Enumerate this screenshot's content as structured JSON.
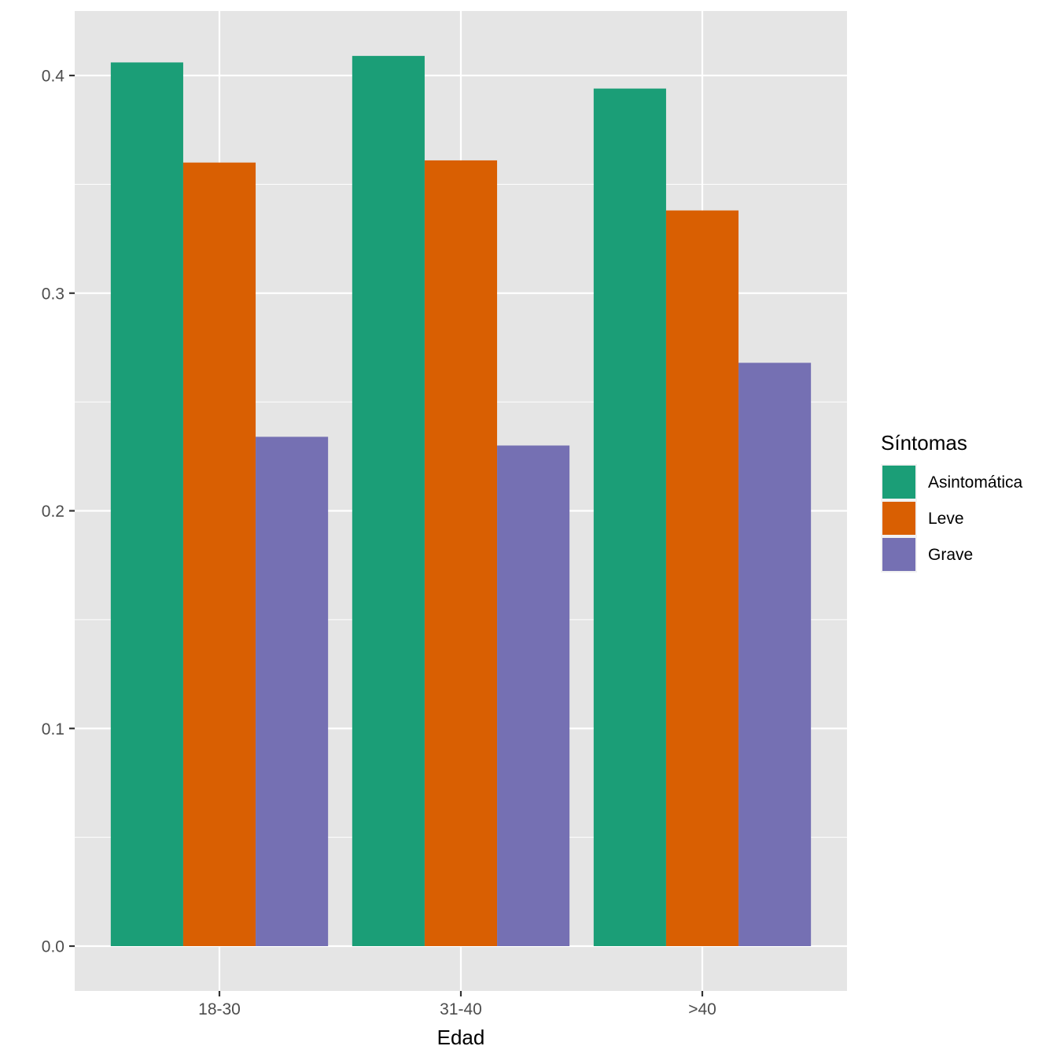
{
  "chart_data": {
    "type": "bar",
    "title": "",
    "xlabel": "Edad",
    "ylabel": "",
    "categories": [
      "18-30",
      "31-40",
      ">40"
    ],
    "series": [
      {
        "name": "Asintomática",
        "color": "#1b9e77",
        "values": [
          0.406,
          0.409,
          0.394
        ]
      },
      {
        "name": "Leve",
        "color": "#d95f02",
        "values": [
          0.36,
          0.361,
          0.338
        ]
      },
      {
        "name": "Grave",
        "color": "#7570b3",
        "values": [
          0.234,
          0.23,
          0.268
        ]
      }
    ],
    "ylim": [
      -0.02,
      0.427
    ],
    "yticks": [
      0.0,
      0.1,
      0.2,
      0.3,
      0.4
    ],
    "ytick_labels": [
      "0.0",
      "0.1",
      "0.2",
      "0.3",
      "0.4"
    ],
    "legend": {
      "title": "Síntomas",
      "position": "right"
    },
    "grid": true,
    "colors": {
      "panel": "#e5e5e5",
      "grid": "#ffffff",
      "text": "#4d4d4d",
      "axis_title": "#000000"
    }
  }
}
